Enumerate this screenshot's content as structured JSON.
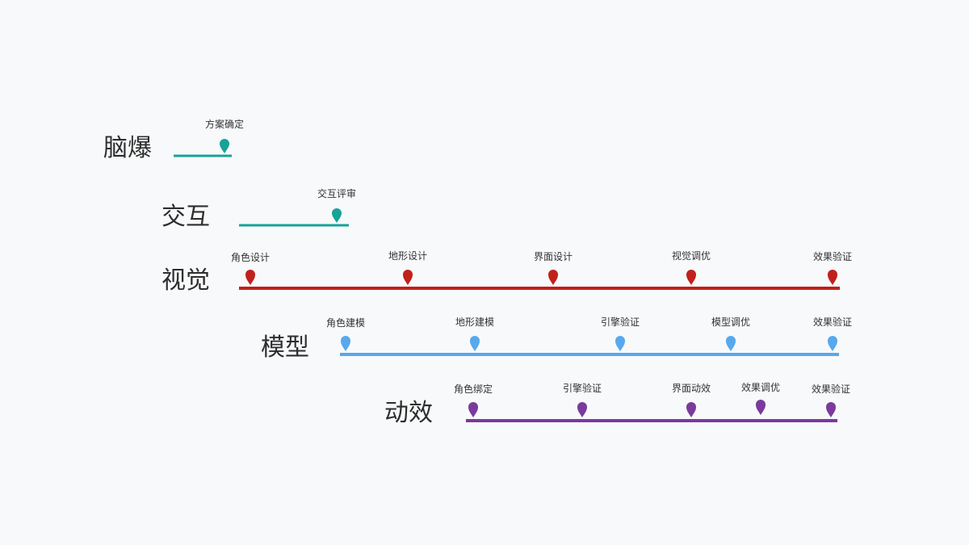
{
  "colors": {
    "background": "#f8f9fb",
    "teal": "#17a398",
    "red": "#c0211c",
    "blue": "#58a8ee",
    "purple": "#7a3b9c"
  },
  "rows": [
    {
      "label": "脑爆",
      "color": "#17a398",
      "milestones": [
        "方案确定"
      ]
    },
    {
      "label": "交互",
      "color": "#17a398",
      "milestones": [
        "交互评审"
      ]
    },
    {
      "label": "视觉",
      "color": "#c0211c",
      "milestones": [
        "角色设计",
        "地形设计",
        "界面设计",
        "视觉调优",
        "效果验证"
      ]
    },
    {
      "label": "模型",
      "color": "#58a8ee",
      "milestones": [
        "角色建模",
        "地形建模",
        "引擎验证",
        "模型调优",
        "效果验证"
      ]
    },
    {
      "label": "动效",
      "color": "#7a3b9c",
      "milestones": [
        "角色绑定",
        "引擎验证",
        "界面动效",
        "效果调优",
        "效果验证"
      ]
    }
  ]
}
